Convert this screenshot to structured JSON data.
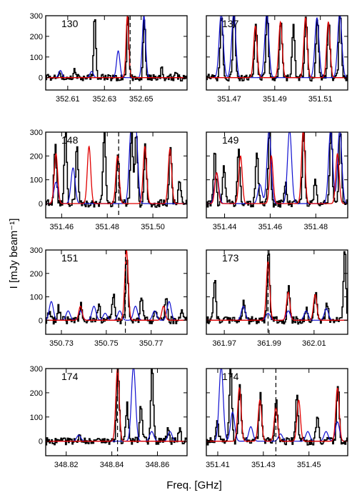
{
  "xlabel": "Freq. [GHz]",
  "ylabel": "I [mJy beam⁻¹]",
  "colors": {
    "observed": "#000000",
    "model_red": "#e00000",
    "model_blue": "#1010d0"
  },
  "chart_data": [
    {
      "type": "line",
      "label": "130",
      "xlim": [
        352.598,
        352.675
      ],
      "ylim": [
        -60,
        300
      ],
      "xticks": [
        "352.61",
        "352.63",
        "352.65"
      ],
      "yticks": [
        "0",
        "100",
        "200",
        "300"
      ],
      "marker_x": 352.644,
      "red_peaks": [
        [
          352.6425,
          300
        ]
      ],
      "blue_peaks": [
        [
          352.606,
          35
        ],
        [
          352.623,
          30
        ],
        [
          352.6375,
          130
        ],
        [
          352.6515,
          300
        ]
      ],
      "black_peaks": [
        [
          352.6055,
          30
        ],
        [
          352.6135,
          40
        ],
        [
          352.6245,
          310
        ],
        [
          352.6425,
          300
        ],
        [
          352.6515,
          300
        ],
        [
          352.661,
          40
        ],
        [
          352.669,
          25
        ]
      ]
    },
    {
      "type": "line",
      "label": "137",
      "xlim": [
        351.46,
        351.522
      ],
      "ylim": [
        -60,
        300
      ],
      "xticks": [
        "351.47",
        "351.49",
        "351.51"
      ],
      "yticks": [],
      "marker_x": null,
      "red_peaks": [
        [
          351.4815,
          250
        ],
        [
          351.4925,
          270
        ],
        [
          351.5035,
          290
        ],
        [
          351.5135,
          270
        ]
      ],
      "blue_peaks": [
        [
          351.4665,
          310
        ],
        [
          351.472,
          310
        ],
        [
          351.4865,
          310
        ],
        [
          351.5085,
          290
        ],
        [
          351.5185,
          310
        ]
      ],
      "black_peaks": [
        [
          351.4665,
          310
        ],
        [
          351.472,
          310
        ],
        [
          351.4815,
          250
        ],
        [
          351.4865,
          310
        ],
        [
          351.4925,
          270
        ],
        [
          351.498,
          250
        ],
        [
          351.5035,
          290
        ],
        [
          351.5085,
          290
        ],
        [
          351.5135,
          270
        ],
        [
          351.5185,
          310
        ]
      ]
    },
    {
      "type": "line",
      "label": "148",
      "xlim": [
        351.453,
        351.515
      ],
      "ylim": [
        -60,
        300
      ],
      "xticks": [
        "351.46",
        "351.48",
        "351.50"
      ],
      "yticks": [
        "0",
        "100",
        "200",
        "300"
      ],
      "marker_x": 351.485,
      "red_peaks": [
        [
          351.4575,
          210
        ],
        [
          351.472,
          240
        ],
        [
          351.4845,
          200
        ],
        [
          351.4965,
          240
        ],
        [
          351.5075,
          230
        ]
      ],
      "blue_peaks": [
        [
          351.4575,
          90
        ],
        [
          351.465,
          150
        ],
        [
          351.4905,
          310
        ],
        [
          351.4925,
          310
        ]
      ],
      "black_peaks": [
        [
          351.457,
          240
        ],
        [
          351.4615,
          310
        ],
        [
          351.4665,
          230
        ],
        [
          351.4785,
          310
        ],
        [
          351.4845,
          200
        ],
        [
          351.4905,
          310
        ],
        [
          351.4925,
          310
        ],
        [
          351.4965,
          240
        ],
        [
          351.5075,
          230
        ],
        [
          351.5115,
          110
        ]
      ]
    },
    {
      "type": "line",
      "label": "149",
      "xlim": [
        351.432,
        351.494
      ],
      "ylim": [
        -60,
        300
      ],
      "xticks": [
        "351.44",
        "351.46",
        "351.48"
      ],
      "yticks": [],
      "marker_x": null,
      "red_peaks": [
        [
          351.4365,
          130
        ],
        [
          351.447,
          200
        ],
        [
          351.4605,
          200
        ],
        [
          351.4745,
          310
        ],
        [
          351.4895,
          210
        ]
      ],
      "blue_peaks": [
        [
          351.4365,
          130
        ],
        [
          351.4555,
          80
        ],
        [
          351.4595,
          310
        ],
        [
          351.4685,
          310
        ],
        [
          351.4865,
          310
        ],
        [
          351.4905,
          310
        ]
      ],
      "black_peaks": [
        [
          351.4355,
          210
        ],
        [
          351.4395,
          150
        ],
        [
          351.446,
          230
        ],
        [
          351.454,
          230
        ],
        [
          351.4595,
          310
        ],
        [
          351.4665,
          90
        ],
        [
          351.4745,
          310
        ],
        [
          351.4795,
          90
        ],
        [
          351.4865,
          310
        ],
        [
          351.4905,
          310
        ]
      ]
    },
    {
      "type": "line",
      "label": "151",
      "xlim": [
        350.723,
        350.786
      ],
      "ylim": [
        -60,
        300
      ],
      "xticks": [
        "350.73",
        "350.75",
        "350.77"
      ],
      "yticks": [
        "0",
        "100",
        "200",
        "300"
      ],
      "marker_x": 350.7585,
      "red_peaks": [
        [
          350.7385,
          60
        ],
        [
          350.759,
          300
        ],
        [
          350.7755,
          60
        ]
      ],
      "blue_peaks": [
        [
          350.7255,
          80
        ],
        [
          350.733,
          40
        ],
        [
          350.7385,
          40
        ],
        [
          350.7445,
          60
        ],
        [
          350.7495,
          30
        ],
        [
          350.756,
          40
        ],
        [
          350.763,
          60
        ],
        [
          350.7715,
          40
        ],
        [
          350.778,
          80
        ]
      ],
      "black_peaks": [
        [
          350.7245,
          40
        ],
        [
          350.7285,
          60
        ],
        [
          350.7385,
          70
        ],
        [
          350.7465,
          70
        ],
        [
          350.753,
          110
        ],
        [
          350.759,
          260
        ],
        [
          350.7655,
          100
        ],
        [
          350.7715,
          50
        ],
        [
          350.7765,
          90
        ],
        [
          350.7835,
          60
        ]
      ]
    },
    {
      "type": "line",
      "label": "173",
      "xlim": [
        361.962,
        362.025
      ],
      "ylim": [
        -60,
        300
      ],
      "xticks": [
        "361.97",
        "361.99",
        "362.01"
      ],
      "yticks": [],
      "marker_x": 361.9895,
      "red_peaks": [
        [
          361.9895,
          250
        ],
        [
          361.9985,
          120
        ],
        [
          362.0105,
          110
        ]
      ],
      "blue_peaks": [
        [
          361.9785,
          60
        ],
        [
          361.9895,
          30
        ],
        [
          361.9985,
          40
        ],
        [
          362.0065,
          40
        ],
        [
          362.0155,
          50
        ]
      ],
      "black_peaks": [
        [
          361.9655,
          180
        ],
        [
          361.9785,
          90
        ],
        [
          361.9895,
          290
        ],
        [
          361.9985,
          150
        ],
        [
          362.0065,
          60
        ],
        [
          362.0105,
          130
        ],
        [
          362.0155,
          80
        ],
        [
          362.0235,
          300
        ]
      ]
    },
    {
      "type": "line",
      "label": "174",
      "xlim": [
        348.811,
        348.873
      ],
      "ylim": [
        -60,
        300
      ],
      "xticks": [
        "348.82",
        "348.84",
        "348.86"
      ],
      "yticks": [
        "0",
        "100",
        "200",
        "300"
      ],
      "marker_x": 348.8425,
      "red_peaks": [
        [
          348.8425,
          300
        ]
      ],
      "blue_peaks": [
        [
          348.8255,
          25
        ],
        [
          348.8495,
          310
        ],
        [
          348.8575,
          40
        ],
        [
          348.8655,
          40
        ]
      ],
      "black_peaks": [
        [
          348.8255,
          20
        ],
        [
          348.8425,
          300
        ],
        [
          348.8465,
          150
        ],
        [
          348.8525,
          150
        ],
        [
          348.8575,
          310
        ],
        [
          348.8645,
          50
        ],
        [
          348.8695,
          50
        ]
      ]
    },
    {
      "type": "line",
      "label": "174",
      "xlim": [
        351.405,
        351.467
      ],
      "ylim": [
        -60,
        300
      ],
      "xticks": [
        "351.41",
        "351.43",
        "351.45"
      ],
      "yticks": [],
      "marker_x": 351.4355,
      "red_peaks": [
        [
          351.4195,
          220
        ],
        [
          351.4285,
          170
        ],
        [
          351.4355,
          140
        ],
        [
          351.4455,
          170
        ],
        [
          351.4625,
          220
        ]
      ],
      "blue_peaks": [
        [
          351.4115,
          310
        ],
        [
          351.4165,
          120
        ],
        [
          351.4245,
          60
        ],
        [
          351.4375,
          30
        ],
        [
          351.4495,
          40
        ],
        [
          351.4575,
          40
        ],
        [
          351.4625,
          80
        ]
      ],
      "black_peaks": [
        [
          351.4095,
          80
        ],
        [
          351.4155,
          310
        ],
        [
          351.4195,
          240
        ],
        [
          351.4285,
          200
        ],
        [
          351.4355,
          170
        ],
        [
          351.4445,
          190
        ],
        [
          351.4535,
          110
        ],
        [
          351.4625,
          240
        ]
      ]
    }
  ]
}
